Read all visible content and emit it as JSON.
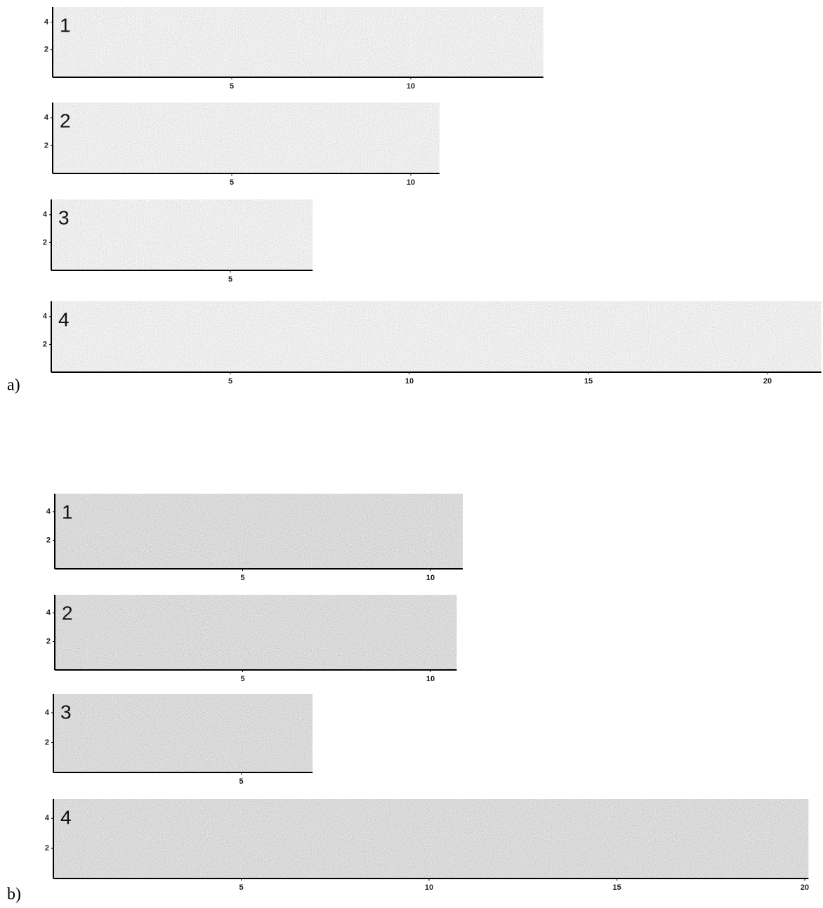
{
  "figures": [
    {
      "label": "a)",
      "panels": [
        {
          "number": "1",
          "xlim": [
            0,
            13.7
          ],
          "xticks": [
            5,
            10
          ],
          "ylim": [
            0,
            5.1
          ],
          "yticks": [
            2,
            4
          ]
        },
        {
          "number": "2",
          "xlim": [
            0,
            10.8
          ],
          "xticks": [
            5,
            10
          ],
          "ylim": [
            0,
            5.1
          ],
          "yticks": [
            2,
            4
          ]
        },
        {
          "number": "3",
          "xlim": [
            0,
            7.3
          ],
          "xticks": [
            5
          ],
          "ylim": [
            0,
            5.1
          ],
          "yticks": [
            2,
            4
          ]
        },
        {
          "number": "4",
          "xlim": [
            0,
            21.5
          ],
          "xticks": [
            5,
            10,
            15,
            20
          ],
          "ylim": [
            0,
            5.1
          ],
          "yticks": [
            2,
            4
          ]
        }
      ]
    },
    {
      "label": "b)",
      "panels": [
        {
          "number": "1",
          "xlim": [
            0,
            10.86
          ],
          "xticks": [
            5,
            10
          ],
          "ylim": [
            0,
            5.27
          ],
          "yticks": [
            2,
            4
          ]
        },
        {
          "number": "2",
          "xlim": [
            0,
            10.7
          ],
          "xticks": [
            5,
            10
          ],
          "ylim": [
            0,
            5.27
          ],
          "yticks": [
            2,
            4
          ]
        },
        {
          "number": "3",
          "xlim": [
            0,
            6.9
          ],
          "xticks": [
            5
          ],
          "ylim": [
            0,
            5.27
          ],
          "yticks": [
            2,
            4
          ]
        },
        {
          "number": "4",
          "xlim": [
            0,
            20.1
          ],
          "xticks": [
            5,
            10,
            15,
            20
          ],
          "ylim": [
            0,
            5.27
          ],
          "yticks": [
            2,
            4
          ]
        }
      ]
    }
  ]
}
